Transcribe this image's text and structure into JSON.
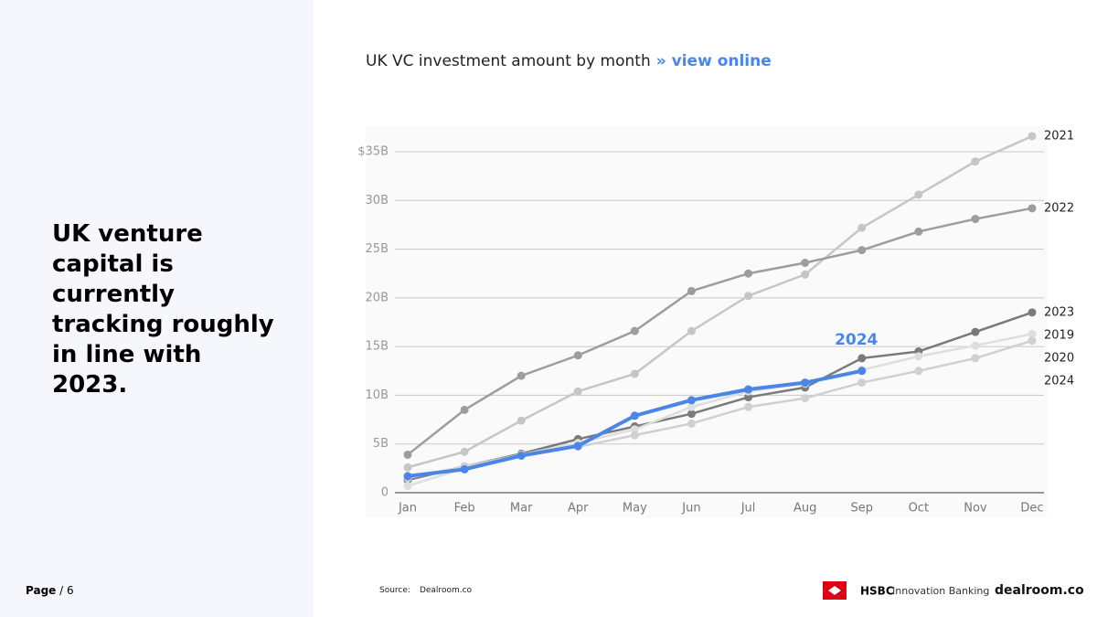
{
  "headline": "UK venture capital is currently tracking roughly in line with 2023.",
  "page": {
    "label": "Page",
    "number": "/ 6"
  },
  "footer": {
    "source_label": "Source:",
    "source": "Dealroom.co",
    "hsbc": "HSBC",
    "hsbc_sub": "Innovation Banking",
    "dealroom": "dealroom.co"
  },
  "chart_data": {
    "type": "line",
    "title": "UK VC investment amount by month",
    "link": "» view online",
    "annotation": "2024",
    "categories": [
      "Jan",
      "Feb",
      "Mar",
      "Apr",
      "May",
      "Jun",
      "Jul",
      "Aug",
      "Sep",
      "Oct",
      "Nov",
      "Dec"
    ],
    "ylim": [
      0,
      37
    ],
    "yticks": [
      0,
      {
        "value": 5,
        "label": "5B"
      },
      {
        "value": 10,
        "label": "10B"
      },
      {
        "value": 15,
        "label": "15B"
      },
      {
        "value": 20,
        "label": "20B"
      },
      {
        "value": 25,
        "label": "25B"
      },
      {
        "value": 30,
        "label": "30B"
      },
      {
        "value": 35,
        "label": "$35B"
      }
    ],
    "grid": true,
    "series": [
      {
        "name": "2021",
        "color": "#c6c6c6",
        "values": [
          2.6,
          4.2,
          7.4,
          10.4,
          12.2,
          16.6,
          20.2,
          22.4,
          27.2,
          30.6,
          34.0,
          36.6
        ]
      },
      {
        "name": "2022",
        "color": "#9d9d9d",
        "values": [
          3.9,
          8.5,
          12.0,
          14.1,
          16.6,
          20.7,
          22.5,
          23.6,
          24.9,
          26.8,
          28.1,
          29.2
        ]
      },
      {
        "name": "2023",
        "color": "#7a7a7a",
        "values": [
          1.3,
          2.7,
          4.0,
          5.5,
          6.8,
          8.1,
          9.8,
          10.8,
          13.8,
          14.5,
          16.5,
          18.5
        ]
      },
      {
        "name": "2019",
        "color": "#dedede",
        "values": [
          0.7,
          2.5,
          3.9,
          5.1,
          6.5,
          8.8,
          10.4,
          11.2,
          12.6,
          14.0,
          15.1,
          16.3
        ]
      },
      {
        "name": "2020",
        "color": "#d0d0d0",
        "values": [
          1.5,
          2.7,
          3.9,
          4.7,
          5.9,
          7.1,
          8.8,
          9.7,
          11.3,
          12.5,
          13.8,
          15.6
        ]
      },
      {
        "name": "2024",
        "color": "#4a86e8",
        "values": [
          1.7,
          2.4,
          3.8,
          4.8,
          7.9,
          9.5,
          10.6,
          11.3,
          12.5,
          null,
          null,
          null
        ]
      }
    ]
  }
}
